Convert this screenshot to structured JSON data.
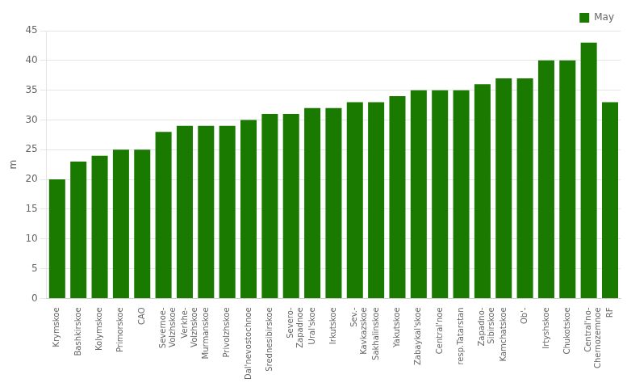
{
  "chart_data": {
    "type": "bar",
    "categories": [
      "Krymskoe",
      "Bashkirskoe",
      "Kolymskoe",
      "Primorskoe",
      "CAO",
      "Severnoe-\nVolzhskoe",
      "Verkhe-\nVolzhskoe",
      "Murmanskoe",
      "Privolzhskoe",
      "Dal'nevostochnoe",
      "Srednesibirskoe",
      "Severo-\nZapadnoe",
      "Ural'skoe",
      "Irkutskoe",
      "Sev.-\nKavkazskoe",
      "Sakhalinskoe",
      "Yakutskoe",
      "Zabaykal'skoe",
      "Central'noe",
      "resp.Tatarstan",
      "Zapadno-\nSibirskoe",
      "Kamchatskoe",
      "Ob'-",
      "Irtyshskoe",
      "Chukotskoe",
      "Central'no-\nChernozemnoe",
      "RF"
    ],
    "series": [
      {
        "name": "May",
        "color": "#1a7a00",
        "values": [
          20,
          23,
          24,
          25,
          25,
          28,
          29,
          29,
          29,
          30,
          31,
          31,
          32,
          32,
          33,
          33,
          34,
          35,
          35,
          35,
          36,
          37,
          37,
          40,
          40,
          43,
          33
        ]
      }
    ],
    "ylabel": "m",
    "ylim": [
      0,
      45
    ],
    "yticks": [
      0,
      5,
      10,
      15,
      20,
      25,
      30,
      35,
      40,
      45
    ],
    "grid": true,
    "legend": "upper right"
  }
}
